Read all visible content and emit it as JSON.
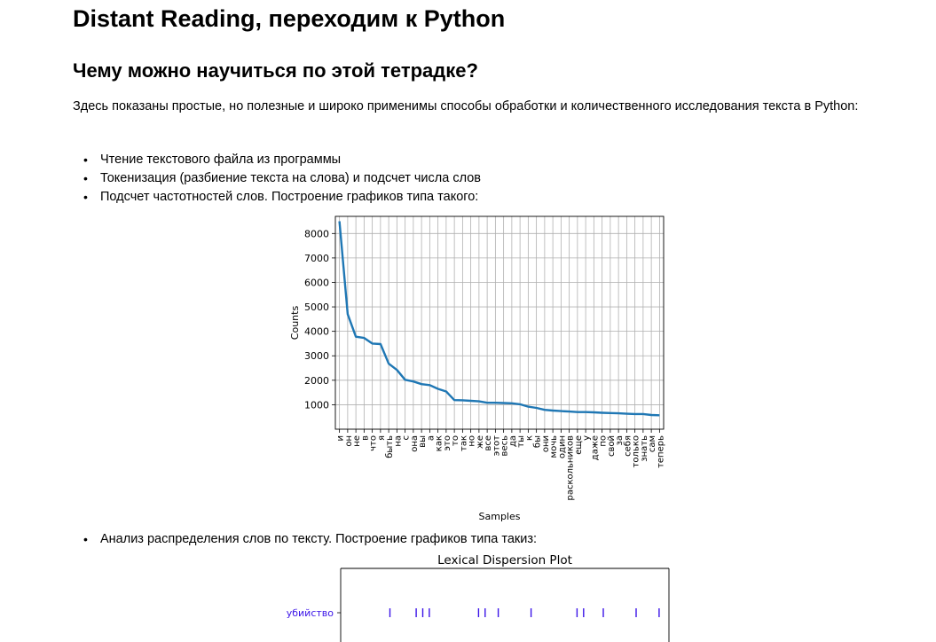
{
  "page": {
    "title": "Distant Reading, переходим к Python",
    "subtitle": "Чему можно научиться по этой тетрадке?",
    "intro": "Здесь показаны простые, но полезные и широко применимы способы обработки и количественного исследования текста в Python:",
    "bullets": [
      "Чтение текстового файла из программы",
      "Токенизация (разбиение текста на слова) и подсчет числа слов",
      "Подсчет частотностей слов. Построение графиков типа такого:"
    ],
    "bullets2": [
      "Анализ распределения слов по тексту. Построение графиков типа такиз:"
    ]
  },
  "chart_data": [
    {
      "type": "line",
      "xlabel": "Samples",
      "ylabel": "Counts",
      "ylim": [
        0,
        8700
      ],
      "yticks": [
        1000,
        2000,
        3000,
        4000,
        5000,
        6000,
        7000,
        8000
      ],
      "grid": true,
      "color": "#1f77b4",
      "categories": [
        "и",
        "он",
        "не",
        "в",
        "что",
        "я",
        "быть",
        "на",
        "с",
        "она",
        "вы",
        "а",
        "как",
        "это",
        "то",
        "так",
        "но",
        "же",
        "все",
        "этот",
        "весь",
        "да",
        "ты",
        "к",
        "бы",
        "они",
        "мочь",
        "один",
        "раскольников",
        "еще",
        "у",
        "даже",
        "по",
        "свой",
        "за",
        "себя",
        "только",
        "знать",
        "сам",
        "теперь"
      ],
      "values": [
        8500,
        4700,
        3780,
        3730,
        3500,
        3480,
        2680,
        2420,
        2020,
        1950,
        1840,
        1800,
        1650,
        1540,
        1190,
        1180,
        1160,
        1140,
        1080,
        1080,
        1070,
        1060,
        1020,
        920,
        870,
        790,
        760,
        740,
        720,
        700,
        700,
        690,
        670,
        660,
        650,
        630,
        620,
        620,
        580,
        570
      ]
    },
    {
      "type": "scatter",
      "title": "Lexical Dispersion Plot",
      "series": [
        {
          "name": "убийство",
          "color": "#3b14e8",
          "x": [
            0.15,
            0.23,
            0.25,
            0.27,
            0.42,
            0.44,
            0.48,
            0.58,
            0.72,
            0.74,
            0.8,
            0.9,
            0.97
          ]
        }
      ]
    }
  ]
}
